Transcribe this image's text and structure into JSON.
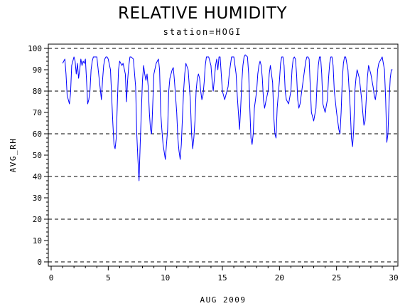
{
  "chart_data": {
    "type": "line",
    "title": "RELATIVE HUMIDITY",
    "subtitle": "station=HOGI",
    "xlabel": "AUG 2009",
    "ylabel": "AVG_RH",
    "xlim": [
      0,
      30
    ],
    "ylim": [
      0,
      100
    ],
    "xticks": [
      0,
      5,
      10,
      15,
      20,
      25,
      30
    ],
    "yticks": [
      0,
      10,
      20,
      30,
      40,
      50,
      60,
      70,
      80,
      90,
      100
    ],
    "reference_lines_y": [
      0,
      20,
      40,
      60,
      80,
      100
    ],
    "grid": "dashed horizontal reference lines",
    "legend": "none",
    "series_color": "#0000ff",
    "series": [
      {
        "x": [
          1.0,
          1.1,
          1.2,
          1.3,
          1.4,
          1.5,
          1.6,
          1.7,
          1.8,
          2.0,
          2.1,
          2.2,
          2.3,
          2.4,
          2.5,
          2.6,
          2.7,
          2.8,
          2.9,
          3.0,
          3.1,
          3.2,
          3.3,
          3.4,
          3.5,
          3.6,
          3.7,
          3.8,
          4.0,
          4.2,
          4.4,
          4.5,
          4.6,
          4.7,
          4.8,
          4.9,
          5.0,
          5.2,
          5.4,
          5.5,
          5.6,
          5.7,
          5.8,
          5.9,
          6.0,
          6.1,
          6.2,
          6.3,
          6.5,
          6.6,
          6.7,
          6.8,
          6.9,
          7.0,
          7.2,
          7.4,
          7.5,
          7.6,
          7.7,
          7.8,
          7.9,
          8.0,
          8.1,
          8.2,
          8.3,
          8.4,
          8.5,
          8.6,
          8.7,
          8.8,
          9.0,
          9.2,
          9.4,
          9.5,
          9.6,
          9.7,
          9.8,
          10.0,
          10.2,
          10.3,
          10.4,
          10.5,
          10.6,
          10.7,
          10.8,
          11.0,
          11.1,
          11.2,
          11.3,
          11.4,
          11.5,
          11.6,
          11.7,
          11.8,
          12.0,
          12.2,
          12.3,
          12.4,
          12.5,
          12.6,
          12.7,
          12.8,
          12.9,
          13.0,
          13.1,
          13.2,
          13.3,
          13.4,
          13.5,
          13.6,
          13.7,
          13.8,
          14.0,
          14.1,
          14.2,
          14.3,
          14.4,
          14.5,
          14.6,
          14.7,
          14.8,
          15.0,
          15.2,
          15.4,
          15.5,
          15.6,
          15.7,
          15.8,
          16.0,
          16.2,
          16.3,
          16.4,
          16.5,
          16.6,
          16.7,
          16.8,
          16.9,
          17.0,
          17.2,
          17.3,
          17.4,
          17.5,
          17.6,
          17.7,
          17.8,
          18.0,
          18.1,
          18.2,
          18.3,
          18.4,
          18.5,
          18.6,
          18.7,
          18.8,
          19.0,
          19.1,
          19.2,
          19.3,
          19.4,
          19.5,
          19.6,
          19.7,
          19.8,
          20.0,
          20.1,
          20.2,
          20.3,
          20.4,
          20.5,
          20.6,
          20.8,
          21.0,
          21.1,
          21.2,
          21.3,
          21.4,
          21.5,
          21.6,
          21.7,
          21.8,
          22.0,
          22.2,
          22.3,
          22.4,
          22.5,
          22.6,
          22.7,
          22.8,
          23.0,
          23.2,
          23.3,
          23.4,
          23.5,
          23.6,
          23.7,
          23.8,
          24.0,
          24.2,
          24.3,
          24.4,
          24.5,
          24.6,
          24.7,
          24.8,
          25.0,
          25.2,
          25.3,
          25.4,
          25.5,
          25.6,
          25.7,
          25.8,
          26.0,
          26.2,
          26.3,
          26.4,
          26.5,
          26.6,
          26.7,
          26.8,
          27.0,
          27.2,
          27.3,
          27.4,
          27.5,
          27.6,
          27.7,
          27.8,
          28.0,
          28.2,
          28.3,
          28.4,
          28.5,
          28.6,
          28.7,
          28.8,
          29.0,
          29.2,
          29.3,
          29.4,
          29.5,
          29.6,
          29.7,
          29.8,
          29.9
        ],
        "y": [
          93,
          94,
          95,
          88,
          78,
          76,
          74,
          79,
          92,
          96,
          94,
          88,
          93,
          86,
          90,
          95,
          92,
          94,
          93,
          95,
          85,
          74,
          76,
          80,
          90,
          94,
          96,
          96,
          96,
          86,
          76,
          85,
          92,
          95,
          96,
          96,
          95,
          90,
          65,
          55,
          53,
          58,
          75,
          90,
          94,
          93,
          92,
          93,
          88,
          75,
          85,
          92,
          96,
          96,
          95,
          82,
          60,
          48,
          38,
          55,
          70,
          85,
          92,
          88,
          85,
          88,
          82,
          70,
          62,
          60,
          88,
          93,
          95,
          90,
          70,
          62,
          55,
          48,
          62,
          80,
          86,
          88,
          90,
          91,
          85,
          70,
          58,
          52,
          48,
          55,
          68,
          80,
          88,
          93,
          90,
          75,
          60,
          53,
          58,
          66,
          80,
          86,
          88,
          86,
          80,
          76,
          78,
          84,
          92,
          96,
          96,
          96,
          92,
          85,
          80,
          86,
          92,
          95,
          90,
          96,
          96,
          80,
          76,
          80,
          82,
          88,
          92,
          96,
          96,
          88,
          78,
          70,
          62,
          72,
          84,
          92,
          96,
          97,
          96,
          88,
          72,
          58,
          55,
          60,
          72,
          80,
          88,
          92,
          94,
          92,
          86,
          76,
          72,
          75,
          80,
          88,
          92,
          88,
          84,
          68,
          60,
          58,
          72,
          85,
          93,
          96,
          96,
          92,
          80,
          76,
          74,
          80,
          90,
          95,
          96,
          95,
          88,
          76,
          72,
          74,
          82,
          90,
          94,
          96,
          96,
          95,
          82,
          70,
          66,
          72,
          85,
          92,
          96,
          96,
          88,
          74,
          70,
          76,
          86,
          93,
          96,
          96,
          92,
          80,
          70,
          62,
          60,
          70,
          85,
          93,
          96,
          96,
          90,
          72,
          58,
          54,
          62,
          80,
          86,
          90,
          86,
          76,
          70,
          64,
          66,
          76,
          86,
          92,
          88,
          82,
          78,
          76,
          80,
          90,
          93,
          94,
          96,
          90,
          76,
          56,
          60,
          75,
          86,
          90,
          90
        ]
      }
    ]
  }
}
